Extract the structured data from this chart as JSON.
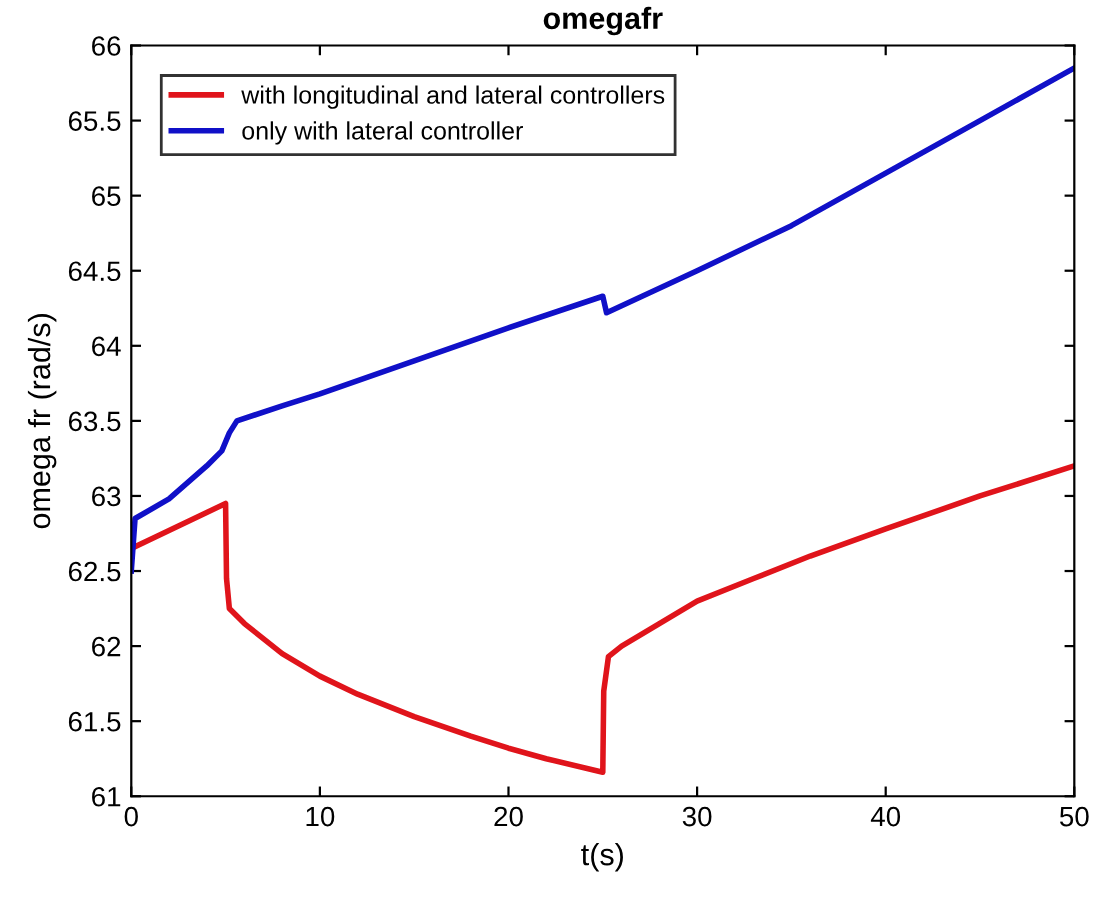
{
  "chart_data": {
    "type": "line",
    "title": "omegafr",
    "xlabel": "t(s)",
    "ylabel": "omega fr (rad/s)",
    "xlim": [
      0,
      50
    ],
    "xticks": [
      0,
      10,
      20,
      30,
      40,
      50
    ],
    "ylim": [
      61,
      66
    ],
    "yticks": [
      61,
      61.5,
      62,
      62.5,
      63,
      63.5,
      64,
      64.5,
      65,
      65.5,
      66
    ],
    "grid": false,
    "legend": "top left",
    "marker": "none",
    "line_style": "solid",
    "series": [
      {
        "name": "with longitudinal and lateral controllers",
        "color": "#e0141b",
        "x": [
          0,
          1,
          2,
          3,
          4,
          5,
          5.05,
          5.2,
          6,
          8,
          10,
          12,
          15,
          18,
          20,
          22,
          25,
          25.05,
          25.3,
          26,
          28,
          30,
          33,
          36,
          40,
          45,
          50
        ],
        "values": [
          62.65,
          62.71,
          62.77,
          62.83,
          62.89,
          62.95,
          62.45,
          62.25,
          62.15,
          61.95,
          61.8,
          61.68,
          61.53,
          61.4,
          61.32,
          61.25,
          61.16,
          61.7,
          61.93,
          62.0,
          62.15,
          62.3,
          62.45,
          62.6,
          62.78,
          63.0,
          63.2
        ]
      },
      {
        "name": "only with lateral controller",
        "color": "#1010c8",
        "x": [
          0,
          0.2,
          2,
          4,
          4.8,
          5.2,
          5.6,
          8,
          10,
          15,
          20,
          25,
          25.2,
          30,
          35,
          40,
          45,
          50
        ],
        "values": [
          62.5,
          62.85,
          62.98,
          63.2,
          63.3,
          63.42,
          63.5,
          63.6,
          63.68,
          63.9,
          64.12,
          64.33,
          64.22,
          64.5,
          64.8,
          65.15,
          65.5,
          65.85
        ]
      }
    ]
  }
}
